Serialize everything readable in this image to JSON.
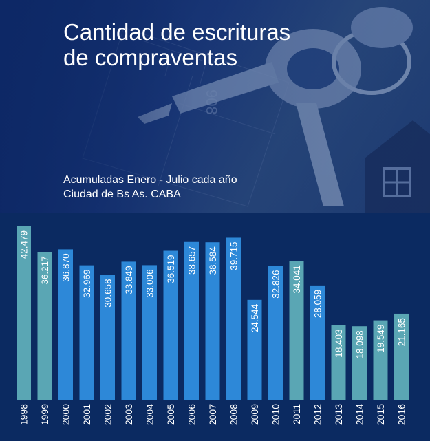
{
  "header": {
    "title_line1": "Cantidad de escrituras",
    "title_line2": "de compraventas",
    "subtitle_line1": "Acumuladas Enero - Julio cada año",
    "subtitle_line2": "Ciudad de Bs As. CABA"
  },
  "colors": {
    "teal": "#5aa6b4",
    "blue": "#2d88d8",
    "background": "#0b2a61",
    "text": "#ffffff"
  },
  "chart_data": {
    "type": "bar",
    "title": "Cantidad de escrituras de compraventas",
    "subtitle": "Acumuladas Enero - Julio cada año · Ciudad de Bs As. CABA",
    "categories": [
      "1998",
      "1999",
      "2000",
      "2001",
      "2002",
      "2003",
      "2004",
      "2005",
      "2006",
      "2007",
      "2008",
      "2009",
      "2010",
      "2011",
      "2012",
      "2013",
      "2014",
      "2015",
      "2016"
    ],
    "values": [
      42479,
      36217,
      36870,
      32969,
      30658,
      33849,
      33006,
      36519,
      38657,
      38584,
      39715,
      24544,
      32826,
      34041,
      28059,
      18403,
      18098,
      19549,
      21165
    ],
    "value_labels": [
      "42.479",
      "36.217",
      "36.870",
      "32.969",
      "30.658",
      "33.849",
      "33.006",
      "36.519",
      "38.657",
      "38.584",
      "39.715",
      "24.544",
      "32.826",
      "34.041",
      "28.059",
      "18.403",
      "18.098",
      "19.549",
      "21.165"
    ],
    "bar_colors": [
      "teal",
      "teal",
      "blue",
      "blue",
      "blue",
      "blue",
      "blue",
      "blue",
      "blue",
      "blue",
      "blue",
      "blue",
      "blue",
      "teal",
      "blue",
      "teal",
      "teal",
      "teal",
      "teal"
    ],
    "ylim": [
      0,
      45000
    ],
    "grid": false,
    "legend": "none",
    "xlabel": "",
    "ylabel": ""
  }
}
